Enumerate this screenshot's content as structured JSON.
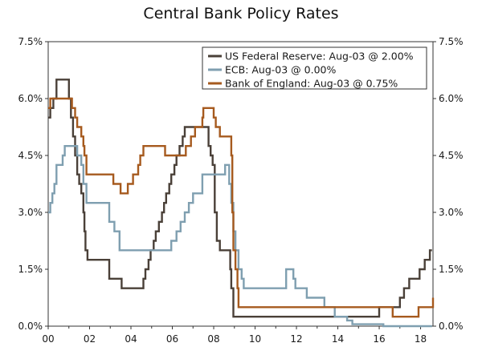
{
  "chart_data": {
    "type": "line",
    "title": "Central Bank Policy Rates",
    "xlabel": "",
    "ylabel": "",
    "xlim": [
      2000,
      2018.6
    ],
    "ylim": [
      0,
      7.5
    ],
    "grid": false,
    "legend_position": "top-right",
    "y_ticks": [
      {
        "value": 0,
        "label": "0.0%"
      },
      {
        "value": 1.5,
        "label": "1.5%"
      },
      {
        "value": 3,
        "label": "3.0%"
      },
      {
        "value": 4.5,
        "label": "4.5%"
      },
      {
        "value": 6,
        "label": "6.0%"
      },
      {
        "value": 7.5,
        "label": "7.5%"
      }
    ],
    "x_ticks": [
      {
        "value": 2000,
        "label": "00"
      },
      {
        "value": 2002,
        "label": "02"
      },
      {
        "value": 2004,
        "label": "04"
      },
      {
        "value": 2006,
        "label": "06"
      },
      {
        "value": 2008,
        "label": "08"
      },
      {
        "value": 2010,
        "label": "10"
      },
      {
        "value": 2012,
        "label": "12"
      },
      {
        "value": 2014,
        "label": "14"
      },
      {
        "value": 2016,
        "label": "16"
      },
      {
        "value": 2018,
        "label": "18"
      }
    ],
    "series": [
      {
        "name": "US Federal Reserve",
        "legend": "US Federal Reserve: Aug-03 @ 2.00%",
        "color": "#4a4038",
        "points": [
          [
            2000.0,
            5.5
          ],
          [
            2000.1,
            5.75
          ],
          [
            2000.25,
            6.0
          ],
          [
            2000.4,
            6.5
          ],
          [
            2000.9,
            6.5
          ],
          [
            2001.0,
            6.0
          ],
          [
            2001.1,
            5.5
          ],
          [
            2001.2,
            5.0
          ],
          [
            2001.3,
            4.5
          ],
          [
            2001.4,
            4.0
          ],
          [
            2001.5,
            3.75
          ],
          [
            2001.6,
            3.5
          ],
          [
            2001.7,
            3.0
          ],
          [
            2001.75,
            2.5
          ],
          [
            2001.8,
            2.0
          ],
          [
            2001.9,
            1.75
          ],
          [
            2002.9,
            1.75
          ],
          [
            2002.95,
            1.25
          ],
          [
            2003.5,
            1.25
          ],
          [
            2003.55,
            1.0
          ],
          [
            2004.5,
            1.0
          ],
          [
            2004.6,
            1.25
          ],
          [
            2004.7,
            1.5
          ],
          [
            2004.85,
            1.75
          ],
          [
            2004.95,
            2.0
          ],
          [
            2005.1,
            2.25
          ],
          [
            2005.2,
            2.5
          ],
          [
            2005.35,
            2.75
          ],
          [
            2005.5,
            3.0
          ],
          [
            2005.6,
            3.25
          ],
          [
            2005.7,
            3.5
          ],
          [
            2005.85,
            3.75
          ],
          [
            2005.95,
            4.0
          ],
          [
            2006.1,
            4.25
          ],
          [
            2006.2,
            4.5
          ],
          [
            2006.35,
            4.75
          ],
          [
            2006.5,
            5.0
          ],
          [
            2006.6,
            5.25
          ],
          [
            2007.7,
            5.25
          ],
          [
            2007.75,
            4.75
          ],
          [
            2007.85,
            4.5
          ],
          [
            2007.95,
            4.25
          ],
          [
            2008.05,
            3.0
          ],
          [
            2008.15,
            2.25
          ],
          [
            2008.3,
            2.0
          ],
          [
            2008.75,
            2.0
          ],
          [
            2008.8,
            1.5
          ],
          [
            2008.85,
            1.0
          ],
          [
            2008.95,
            0.25
          ],
          [
            2015.95,
            0.25
          ],
          [
            2016.0,
            0.5
          ],
          [
            2016.95,
            0.5
          ],
          [
            2017.0,
            0.75
          ],
          [
            2017.2,
            1.0
          ],
          [
            2017.45,
            1.25
          ],
          [
            2017.95,
            1.5
          ],
          [
            2018.2,
            1.75
          ],
          [
            2018.45,
            2.0
          ],
          [
            2018.55,
            2.0
          ]
        ]
      },
      {
        "name": "ECB",
        "legend": "ECB: Aug-03 @ 0.00%",
        "color": "#7f9fb0",
        "points": [
          [
            2000.0,
            3.0
          ],
          [
            2000.1,
            3.25
          ],
          [
            2000.2,
            3.5
          ],
          [
            2000.3,
            3.75
          ],
          [
            2000.4,
            4.25
          ],
          [
            2000.7,
            4.5
          ],
          [
            2000.8,
            4.75
          ],
          [
            2001.35,
            4.75
          ],
          [
            2001.4,
            4.5
          ],
          [
            2001.6,
            4.25
          ],
          [
            2001.7,
            3.75
          ],
          [
            2001.85,
            3.25
          ],
          [
            2002.9,
            3.25
          ],
          [
            2002.95,
            2.75
          ],
          [
            2003.2,
            2.5
          ],
          [
            2003.45,
            2.0
          ],
          [
            2005.9,
            2.0
          ],
          [
            2005.95,
            2.25
          ],
          [
            2006.2,
            2.5
          ],
          [
            2006.4,
            2.75
          ],
          [
            2006.6,
            3.0
          ],
          [
            2006.8,
            3.25
          ],
          [
            2007.0,
            3.5
          ],
          [
            2007.45,
            4.0
          ],
          [
            2008.5,
            4.0
          ],
          [
            2008.55,
            4.25
          ],
          [
            2008.75,
            3.75
          ],
          [
            2008.85,
            3.25
          ],
          [
            2008.95,
            2.5
          ],
          [
            2009.05,
            2.0
          ],
          [
            2009.2,
            1.5
          ],
          [
            2009.35,
            1.25
          ],
          [
            2009.45,
            1.0
          ],
          [
            2011.25,
            1.0
          ],
          [
            2011.5,
            1.5
          ],
          [
            2011.85,
            1.25
          ],
          [
            2011.95,
            1.0
          ],
          [
            2012.5,
            0.75
          ],
          [
            2013.35,
            0.5
          ],
          [
            2013.85,
            0.25
          ],
          [
            2014.45,
            0.15
          ],
          [
            2014.7,
            0.05
          ],
          [
            2016.2,
            0.0
          ],
          [
            2018.55,
            0.0
          ]
        ]
      },
      {
        "name": "Bank of England",
        "legend": "Bank of England: Aug-03 @ 0.75%",
        "color": "#a65a1e",
        "points": [
          [
            2000.0,
            5.75
          ],
          [
            2000.1,
            6.0
          ],
          [
            2001.1,
            6.0
          ],
          [
            2001.15,
            5.75
          ],
          [
            2001.3,
            5.5
          ],
          [
            2001.4,
            5.25
          ],
          [
            2001.6,
            5.0
          ],
          [
            2001.7,
            4.75
          ],
          [
            2001.75,
            4.5
          ],
          [
            2001.85,
            4.0
          ],
          [
            2003.1,
            4.0
          ],
          [
            2003.15,
            3.75
          ],
          [
            2003.5,
            3.5
          ],
          [
            2003.85,
            3.75
          ],
          [
            2004.1,
            4.0
          ],
          [
            2004.35,
            4.25
          ],
          [
            2004.45,
            4.5
          ],
          [
            2004.6,
            4.75
          ],
          [
            2005.6,
            4.75
          ],
          [
            2005.65,
            4.5
          ],
          [
            2006.6,
            4.5
          ],
          [
            2006.65,
            4.75
          ],
          [
            2006.9,
            5.0
          ],
          [
            2007.1,
            5.25
          ],
          [
            2007.45,
            5.5
          ],
          [
            2007.5,
            5.75
          ],
          [
            2007.95,
            5.75
          ],
          [
            2008.0,
            5.5
          ],
          [
            2008.1,
            5.25
          ],
          [
            2008.3,
            5.0
          ],
          [
            2008.8,
            5.0
          ],
          [
            2008.85,
            4.5
          ],
          [
            2008.9,
            3.0
          ],
          [
            2008.95,
            2.0
          ],
          [
            2009.05,
            1.5
          ],
          [
            2009.15,
            1.0
          ],
          [
            2009.2,
            0.5
          ],
          [
            2016.6,
            0.5
          ],
          [
            2016.65,
            0.25
          ],
          [
            2017.85,
            0.25
          ],
          [
            2017.9,
            0.5
          ],
          [
            2018.55,
            0.5
          ],
          [
            2018.6,
            0.75
          ]
        ]
      }
    ]
  }
}
